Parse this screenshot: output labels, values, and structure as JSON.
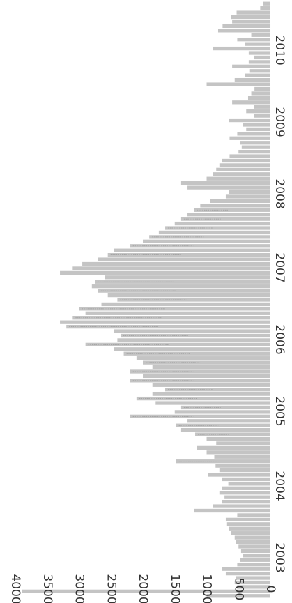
{
  "chart_data": {
    "type": "bar",
    "orientation": "rotated-90",
    "title": "",
    "xlabel": "",
    "ylabel": "",
    "ylim": [
      0,
      4000
    ],
    "grid": false,
    "legend": "none",
    "y_ticks": [
      "0",
      "500",
      "1000",
      "1500",
      "2000",
      "2500",
      "3000",
      "3500",
      "4000"
    ],
    "x_ticks": [
      "2003",
      "2004",
      "2005",
      "2006",
      "2007",
      "2008",
      "2009",
      "2010"
    ],
    "bar_color": "#c4c4c4",
    "series": [
      {
        "values": [
          1000,
          3900,
          520,
          560,
          540,
          700,
          760,
          520,
          480,
          430,
          460,
          500,
          540,
          560,
          620,
          650,
          680,
          700,
          520,
          1200,
          900,
          760,
          720,
          800,
          760,
          660,
          760,
          980,
          800,
          860,
          1480,
          880,
          1000,
          1150,
          850,
          1000,
          1180,
          1400,
          1480,
          1300,
          2200,
          1500,
          1400,
          1800,
          2100,
          1850,
          1650,
          1850,
          2200,
          2000,
          2200,
          1850,
          2000,
          2100,
          2300,
          2450,
          2900,
          2400,
          2350,
          2450,
          3200,
          3300,
          3100,
          2900,
          3000,
          2650,
          2400,
          2550,
          2700,
          2800,
          2750,
          2600,
          3300,
          3100,
          2950,
          2700,
          2550,
          2450,
          2200,
          2000,
          1900,
          1750,
          1650,
          1500,
          1400,
          1300,
          1200,
          1100,
          950,
          700,
          650,
          1300,
          1400,
          1000,
          900,
          850,
          800,
          760,
          640,
          500,
          450,
          480,
          640,
          520,
          380,
          430,
          650,
          260,
          380,
          260,
          600,
          350,
          300,
          250,
          1000,
          560,
          400,
          320,
          600,
          340,
          260,
          340,
          900,
          400,
          520,
          300,
          820,
          750,
          600,
          620,
          530,
          160,
          120
        ]
      }
    ]
  }
}
